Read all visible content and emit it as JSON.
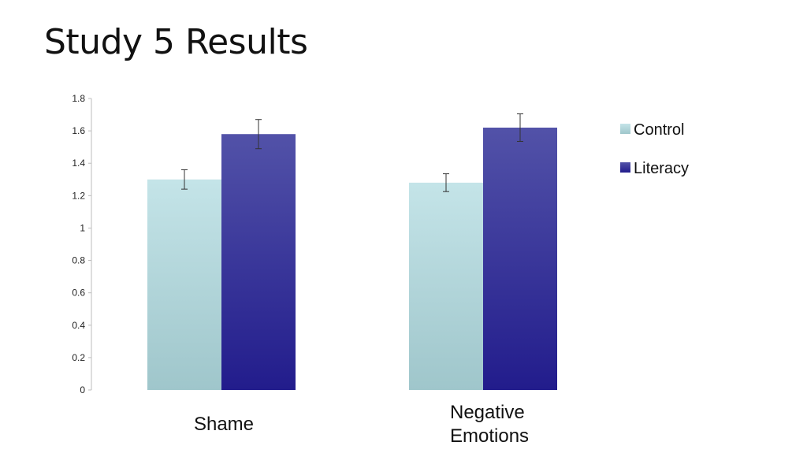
{
  "slide": {
    "title": "Study 5 Results"
  },
  "chart_data": {
    "type": "bar",
    "categories": [
      "Shame",
      "Negative Emotions"
    ],
    "category_lines": [
      [
        "Shame"
      ],
      [
        "Negative",
        "Emotions"
      ]
    ],
    "series": [
      {
        "name": "Control",
        "values": [
          1.3,
          1.28
        ],
        "error": [
          0.06,
          0.055
        ],
        "color_top": "#c4e4e8",
        "color_bottom": "#9fc6cb"
      },
      {
        "name": "Literacy",
        "values": [
          1.58,
          1.62
        ],
        "error": [
          0.09,
          0.085
        ],
        "color_top": "#5252a8",
        "color_bottom": "#221c8c"
      }
    ],
    "ylim": [
      0,
      1.8
    ],
    "yticks": [
      "0",
      "0.2",
      "0.4",
      "0.6",
      "0.8",
      "1",
      "1.2",
      "1.4",
      "1.6",
      "1.8"
    ],
    "grid": false,
    "legend": "right",
    "xlabel": "",
    "ylabel": ""
  }
}
